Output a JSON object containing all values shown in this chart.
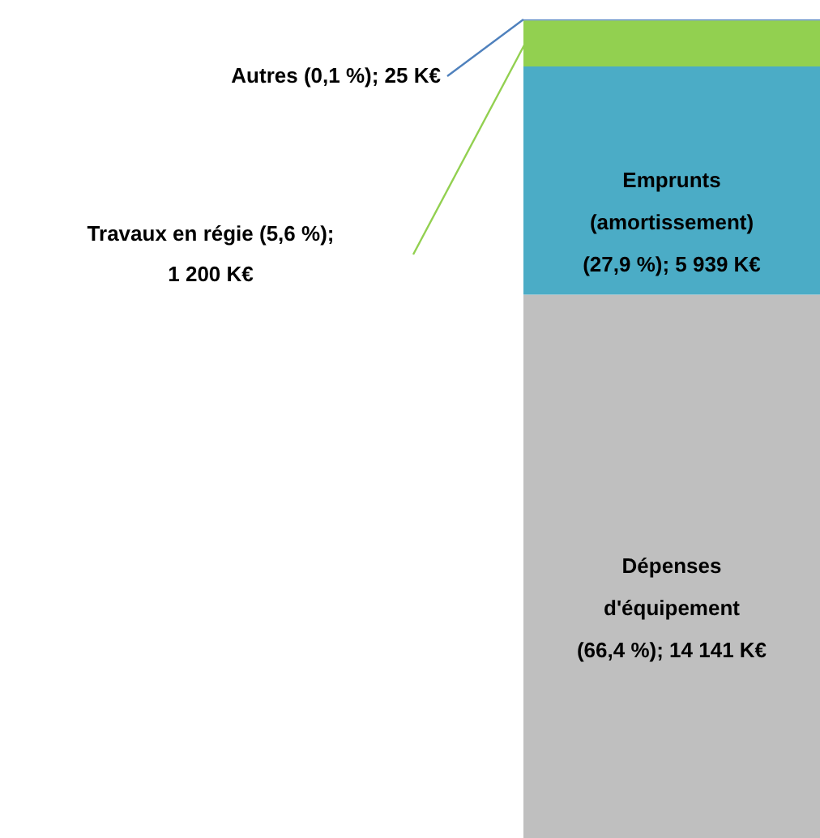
{
  "chart_data": {
    "type": "bar",
    "stacked": true,
    "categories": [
      null
    ],
    "series": [
      {
        "name": "Dépenses d'équipement",
        "color": "#bfbfbf",
        "values": [
          14141
        ],
        "value_labels": [
          "(66,4 %); 14 141 K€"
        ]
      },
      {
        "name": "Emprunts (amortissement)",
        "color": "#4bacc6",
        "values": [
          5939
        ],
        "value_labels": [
          "(27,9 %); 5 939 K€"
        ]
      },
      {
        "name": "Travaux en régie",
        "color": "#92d050",
        "values": [
          1200
        ],
        "value_labels": [
          "(5,6 %); 1 200 K€"
        ]
      },
      {
        "name": "Autres",
        "color": "#4f81bd",
        "values": [
          25
        ],
        "value_labels": [
          "(0,1 %);  25 K€"
        ]
      }
    ]
  }
}
